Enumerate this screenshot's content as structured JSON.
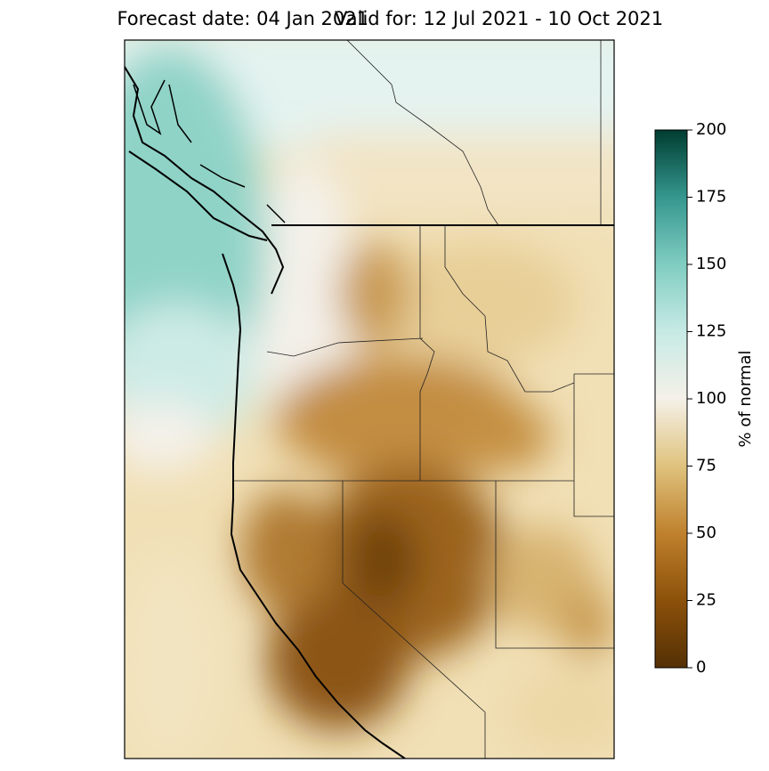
{
  "header": {
    "forecast": "Forecast date: 04 Jan 2021",
    "valid": "Valid for: 12 Jul 2021 - 10 Oct 2021"
  },
  "colorbar": {
    "label": "% of normal",
    "lim": [
      0,
      200
    ],
    "ticks": [
      0,
      25,
      50,
      75,
      100,
      125,
      150,
      175,
      200
    ]
  }
}
